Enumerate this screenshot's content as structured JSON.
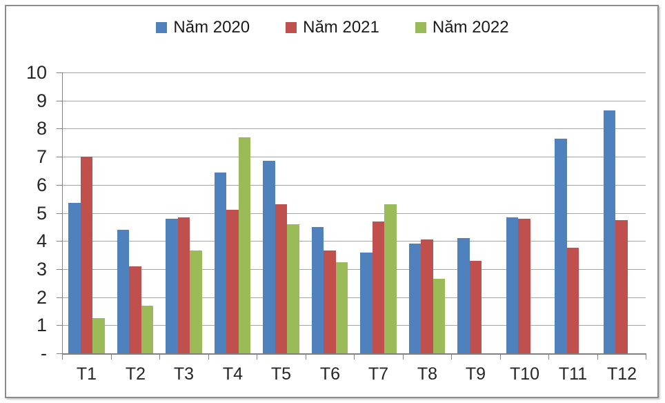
{
  "chart_data": {
    "type": "bar",
    "categories": [
      "T1",
      "T2",
      "T3",
      "T4",
      "T5",
      "T6",
      "T7",
      "T8",
      "T9",
      "T10",
      "T11",
      "T12"
    ],
    "series": [
      {
        "name": "Năm 2020",
        "color": "#4F81BD",
        "values": [
          5.35,
          4.4,
          4.8,
          6.45,
          6.85,
          4.5,
          3.6,
          3.9,
          4.1,
          4.85,
          7.65,
          8.65
        ]
      },
      {
        "name": "Năm 2021",
        "color": "#C0504D",
        "values": [
          7.0,
          3.1,
          4.85,
          5.1,
          5.3,
          3.65,
          4.7,
          4.05,
          3.3,
          4.8,
          3.75,
          4.75
        ]
      },
      {
        "name": "Năm 2022",
        "color": "#9BBB59",
        "values": [
          1.25,
          1.7,
          3.65,
          7.7,
          4.6,
          3.25,
          5.3,
          2.65,
          null,
          null,
          null,
          null
        ]
      }
    ],
    "ylim": [
      0,
      10
    ],
    "ytick_step": 1,
    "zero_tick_label": "-",
    "grid": true,
    "legend_position": "top"
  },
  "ui_colors": {
    "gridline": "#a6a6a6",
    "axis": "#808080",
    "frame_border": "#8c8c8c",
    "text": "#262626",
    "background": "#ffffff"
  }
}
